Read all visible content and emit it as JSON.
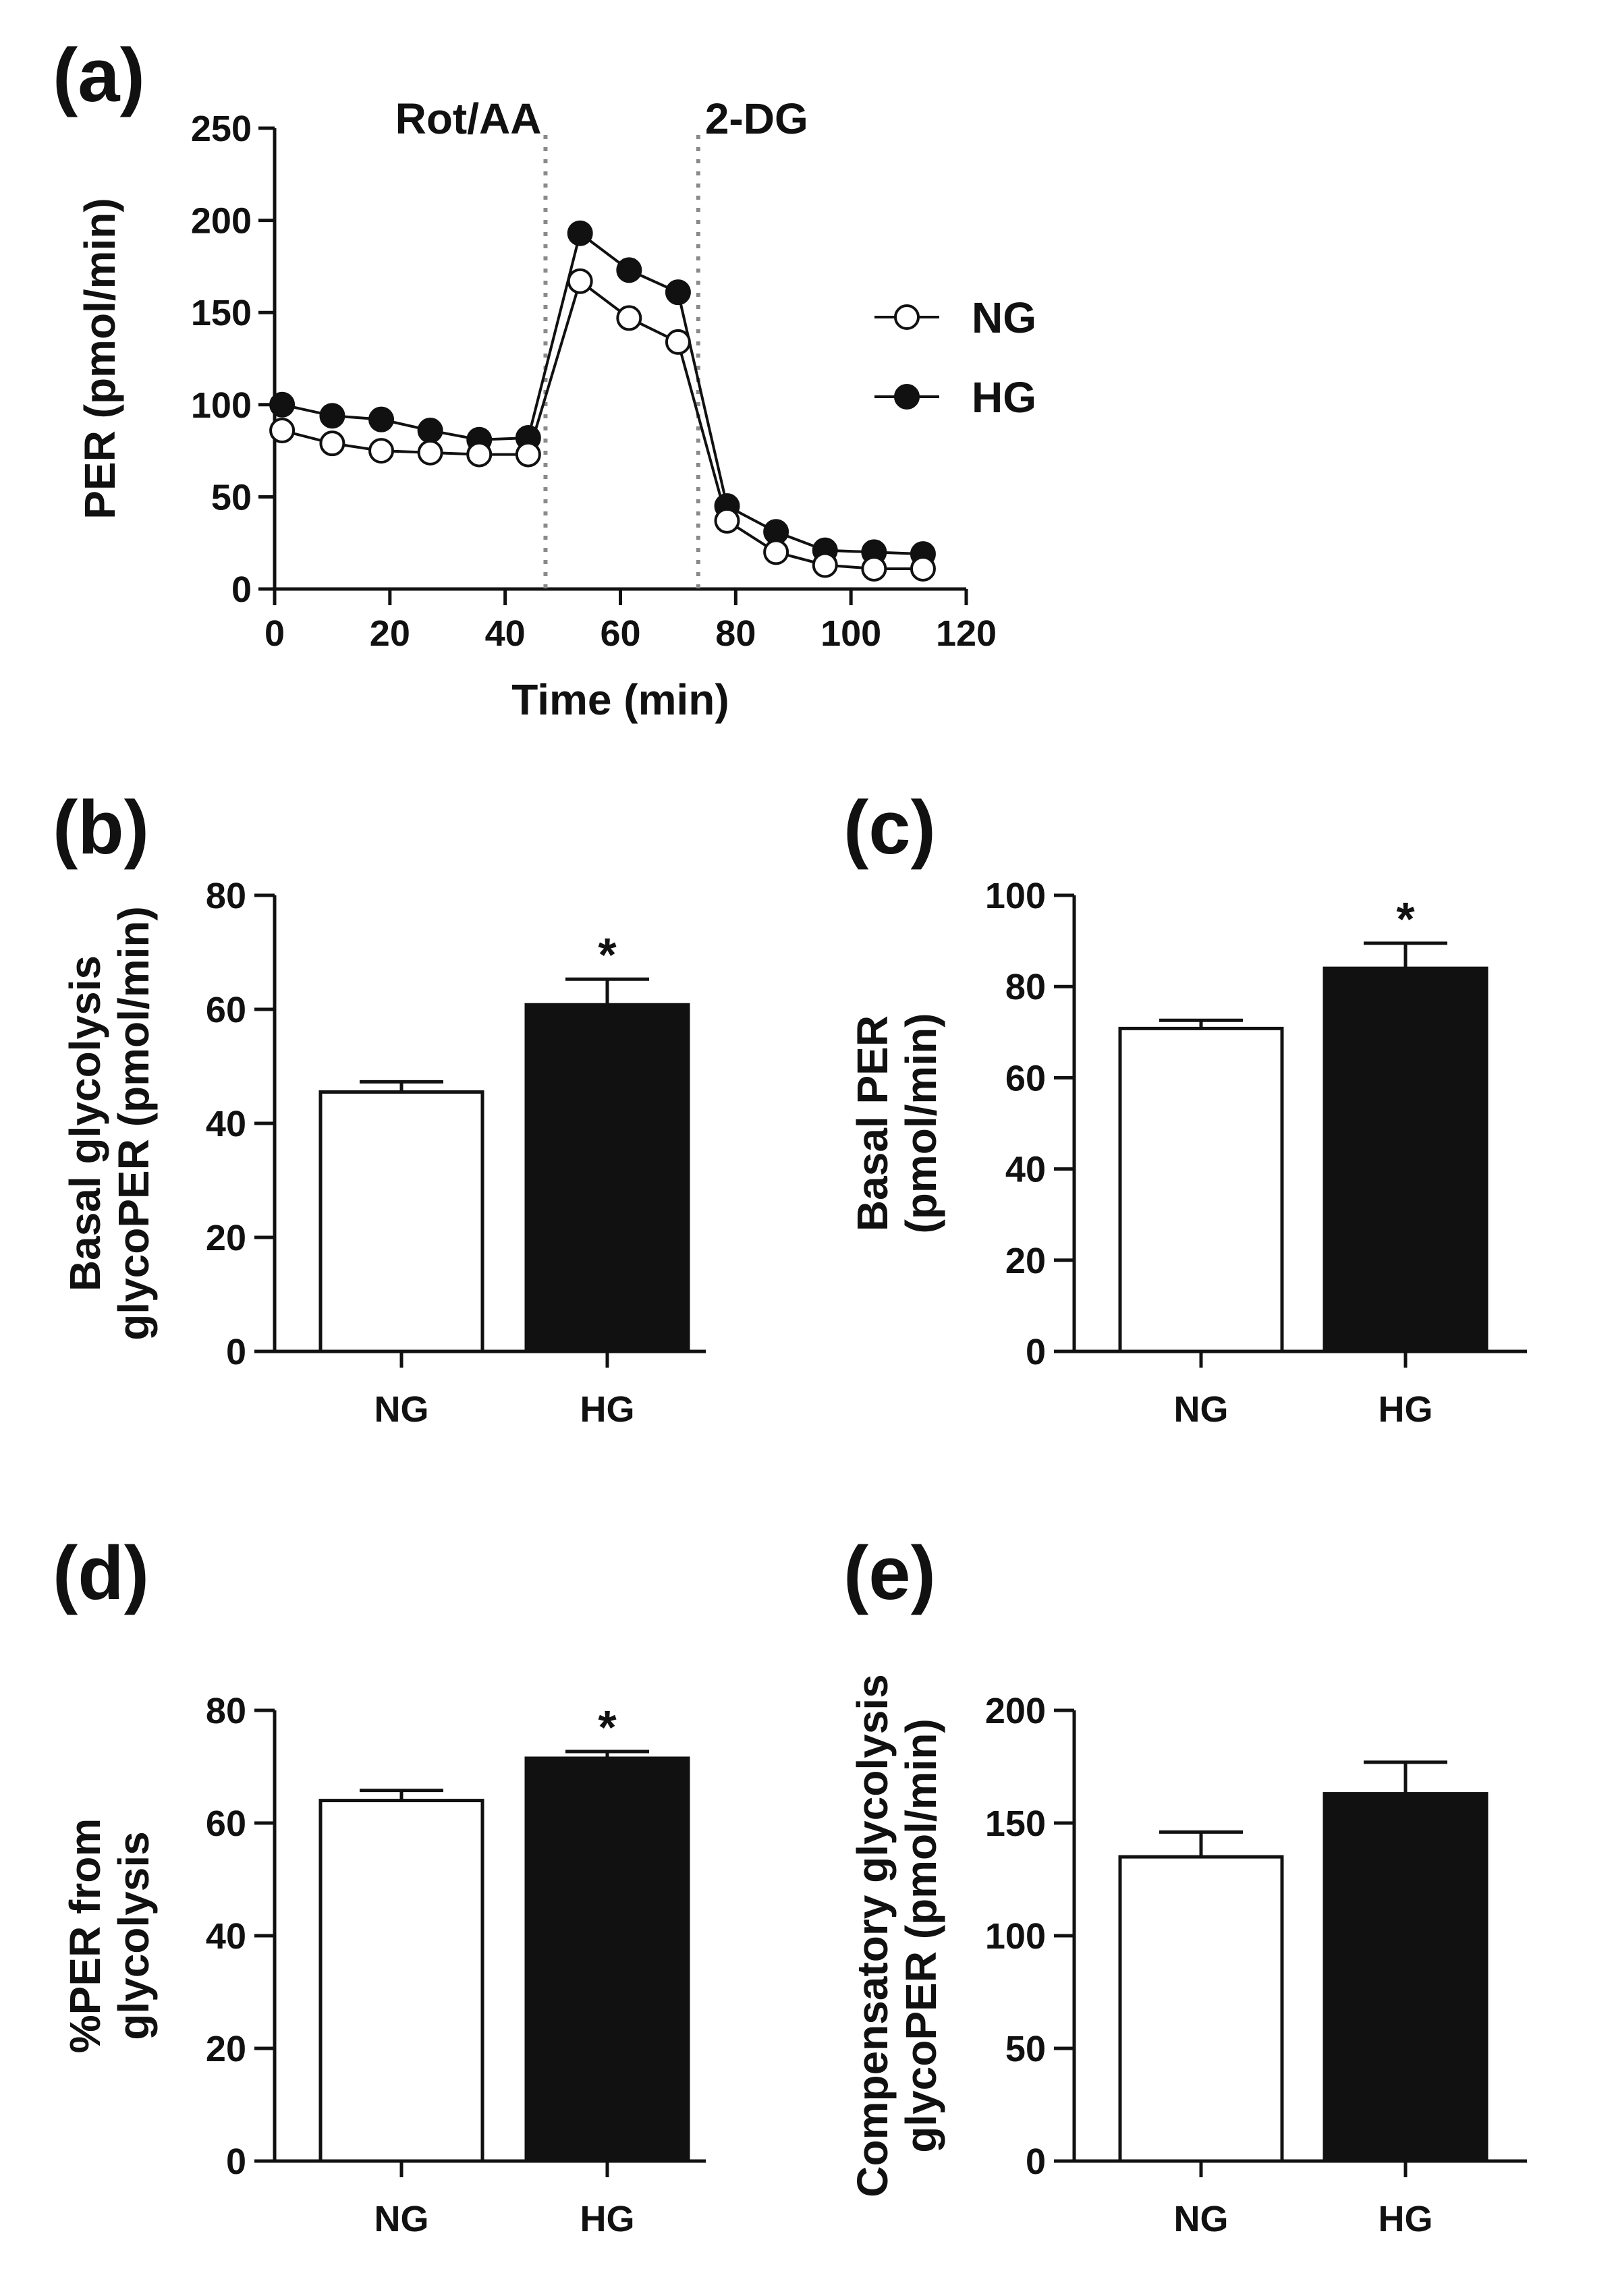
{
  "chart_data": [
    {
      "id": "a",
      "panel_label": "(a)",
      "type": "line",
      "xlabel": "Time (min)",
      "ylabel": "PER (pmol/min)",
      "xlim": [
        0,
        120
      ],
      "ylim": [
        0,
        250
      ],
      "xticks": [
        0,
        20,
        40,
        60,
        80,
        100,
        120
      ],
      "yticks": [
        0,
        50,
        100,
        150,
        200,
        250
      ],
      "injections": [
        {
          "label": "Rot/AA",
          "x": 47
        },
        {
          "label": "2-DG",
          "x": 73.5
        }
      ],
      "legend": {
        "placement": "right"
      },
      "x": [
        1.3,
        10,
        18.5,
        27,
        35.5,
        44,
        53,
        61.5,
        70,
        78.5,
        87,
        95.5,
        104,
        112.5
      ],
      "series": [
        {
          "name": "NG",
          "marker": "open-circle",
          "values": [
            86,
            79,
            75,
            74,
            73,
            73,
            167,
            147,
            134,
            37,
            20,
            13,
            11,
            11
          ]
        },
        {
          "name": "HG",
          "marker": "filled-circle",
          "values": [
            100,
            94,
            92,
            86,
            81,
            82,
            193,
            173,
            161,
            45,
            31,
            21,
            20,
            19
          ]
        }
      ]
    },
    {
      "id": "b",
      "panel_label": "(b)",
      "type": "bar",
      "categories": [
        "NG",
        "HG"
      ],
      "values": [
        45.5,
        60.8
      ],
      "errors": [
        1.8,
        4.5
      ],
      "significance": [
        "",
        "*"
      ],
      "ylabel_lines": [
        "Basal glycolysis",
        "glycoPER (pmol/min)"
      ],
      "ylim": [
        0,
        80
      ],
      "yticks": [
        0,
        20,
        40,
        60,
        80
      ]
    },
    {
      "id": "c",
      "panel_label": "(c)",
      "type": "bar",
      "categories": [
        "NG",
        "HG"
      ],
      "values": [
        70.8,
        84.0
      ],
      "errors": [
        1.8,
        5.5
      ],
      "significance": [
        "",
        "*"
      ],
      "ylabel_lines": [
        "Basal PER",
        "(pmol/min)"
      ],
      "ylim": [
        0,
        100
      ],
      "yticks": [
        0,
        20,
        40,
        60,
        80,
        100
      ]
    },
    {
      "id": "d",
      "panel_label": "(d)",
      "type": "bar",
      "categories": [
        "NG",
        "HG"
      ],
      "values": [
        64.0,
        71.5
      ],
      "errors": [
        1.8,
        1.2
      ],
      "significance": [
        "",
        "*"
      ],
      "ylabel_lines": [
        "%PER from",
        "glycolysis"
      ],
      "ylim": [
        0,
        80
      ],
      "yticks": [
        0,
        20,
        40,
        60,
        80
      ]
    },
    {
      "id": "e",
      "panel_label": "(e)",
      "type": "bar",
      "categories": [
        "NG",
        "HG"
      ],
      "values": [
        135,
        163
      ],
      "errors": [
        11,
        14
      ],
      "significance": [
        "",
        ""
      ],
      "ylabel_lines": [
        "Compensatory glycolysis",
        "glycoPER (pmol/min)"
      ],
      "ylim": [
        0,
        200
      ],
      "yticks": [
        0,
        50,
        100,
        150,
        200
      ]
    }
  ]
}
